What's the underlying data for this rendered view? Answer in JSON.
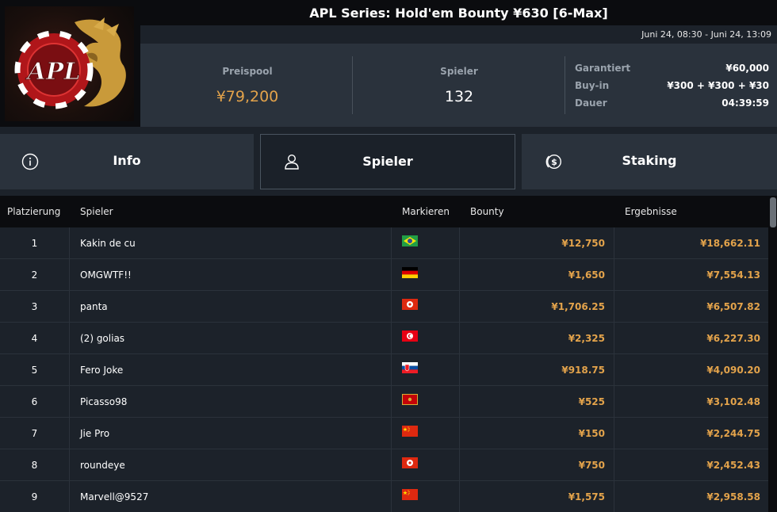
{
  "header": {
    "title": "APL Series: Hold'em Bounty ¥630 [6-Max]",
    "date_range": "Juni 24, 08:30 - Juni 24, 13:09",
    "logo_text": "APL"
  },
  "stats": {
    "prizepool_label": "Preispool",
    "prizepool_value": "¥79,200",
    "players_label": "Spieler",
    "players_value": "132",
    "details": [
      {
        "label": "Garantiert",
        "value": "¥60,000"
      },
      {
        "label": "Buy-in",
        "value": "¥300 + ¥300 + ¥30"
      },
      {
        "label": "Dauer",
        "value": "04:39:59"
      }
    ]
  },
  "tabs": [
    {
      "label": "Info",
      "icon": "info-icon",
      "active": false
    },
    {
      "label": "Spieler",
      "icon": "user-icon",
      "active": true
    },
    {
      "label": "Staking",
      "icon": "dollar-coin-icon",
      "active": false
    }
  ],
  "table": {
    "columns": [
      "Platzierung",
      "Spieler",
      "Markieren",
      "Bounty",
      "Ergebnisse"
    ],
    "rows": [
      {
        "rank": "1",
        "name": "Kakin de cu",
        "flag": "brazil",
        "bounty": "¥12,750",
        "result": "¥18,662.11"
      },
      {
        "rank": "2",
        "name": "OMGWTF!!",
        "flag": "germany",
        "bounty": "¥1,650",
        "result": "¥7,554.13"
      },
      {
        "rank": "3",
        "name": "panta",
        "flag": "hong-kong",
        "bounty": "¥1,706.25",
        "result": "¥6,507.82"
      },
      {
        "rank": "4",
        "name": "(2) golias",
        "flag": "tunisia",
        "bounty": "¥2,325",
        "result": "¥6,227.30"
      },
      {
        "rank": "5",
        "name": "Fero Joke",
        "flag": "slovakia",
        "bounty": "¥918.75",
        "result": "¥4,090.20"
      },
      {
        "rank": "6",
        "name": "Picasso98",
        "flag": "montenegro",
        "bounty": "¥525",
        "result": "¥3,102.48"
      },
      {
        "rank": "7",
        "name": "Jie Pro",
        "flag": "china",
        "bounty": "¥150",
        "result": "¥2,244.75"
      },
      {
        "rank": "8",
        "name": "roundeye",
        "flag": "hong-kong",
        "bounty": "¥750",
        "result": "¥2,452.43"
      },
      {
        "rank": "9",
        "name": "Marvell@9527",
        "flag": "china",
        "bounty": "¥1,575",
        "result": "¥2,958.58"
      }
    ]
  },
  "colors": {
    "accent_gold": "#e3a34b",
    "panel": "#2a323c",
    "background": "#1c222a",
    "header_black": "#0b0c0f"
  }
}
